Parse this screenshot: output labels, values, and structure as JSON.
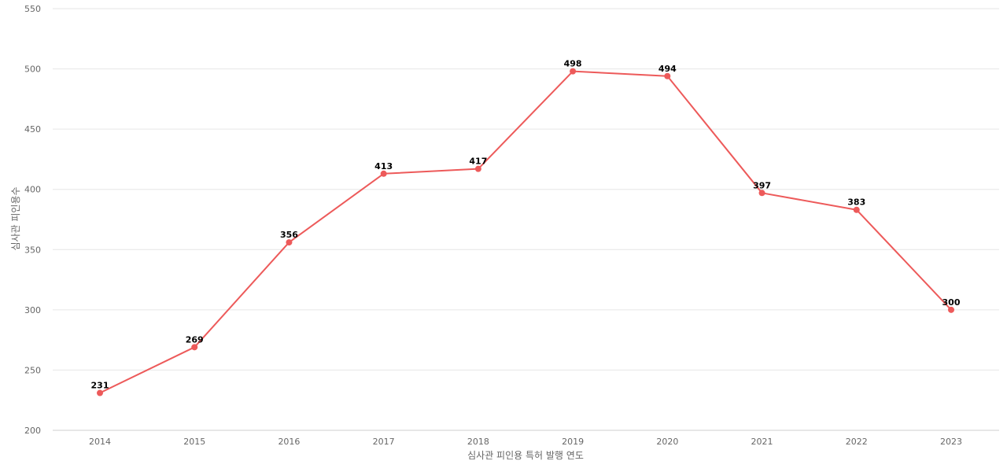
{
  "chart_data": {
    "type": "line",
    "title": "",
    "xlabel": "심사관 피인용 특허 발행 연도",
    "ylabel": "심사관 피인용수",
    "categories": [
      "2014",
      "2015",
      "2016",
      "2017",
      "2018",
      "2019",
      "2020",
      "2021",
      "2022",
      "2023"
    ],
    "values": [
      231,
      269,
      356,
      413,
      417,
      498,
      494,
      397,
      383,
      300
    ],
    "ylim": [
      200,
      550
    ],
    "yticks": [
      200,
      250,
      300,
      350,
      400,
      450,
      500,
      550
    ],
    "grid": true,
    "legend": "none",
    "data_labels": true,
    "colors": {
      "series": "#ed5a5a",
      "grid": "#e6e6e6",
      "axis": "#cfcfcf",
      "tick_text": "#666666",
      "label_text": "#000000"
    }
  }
}
